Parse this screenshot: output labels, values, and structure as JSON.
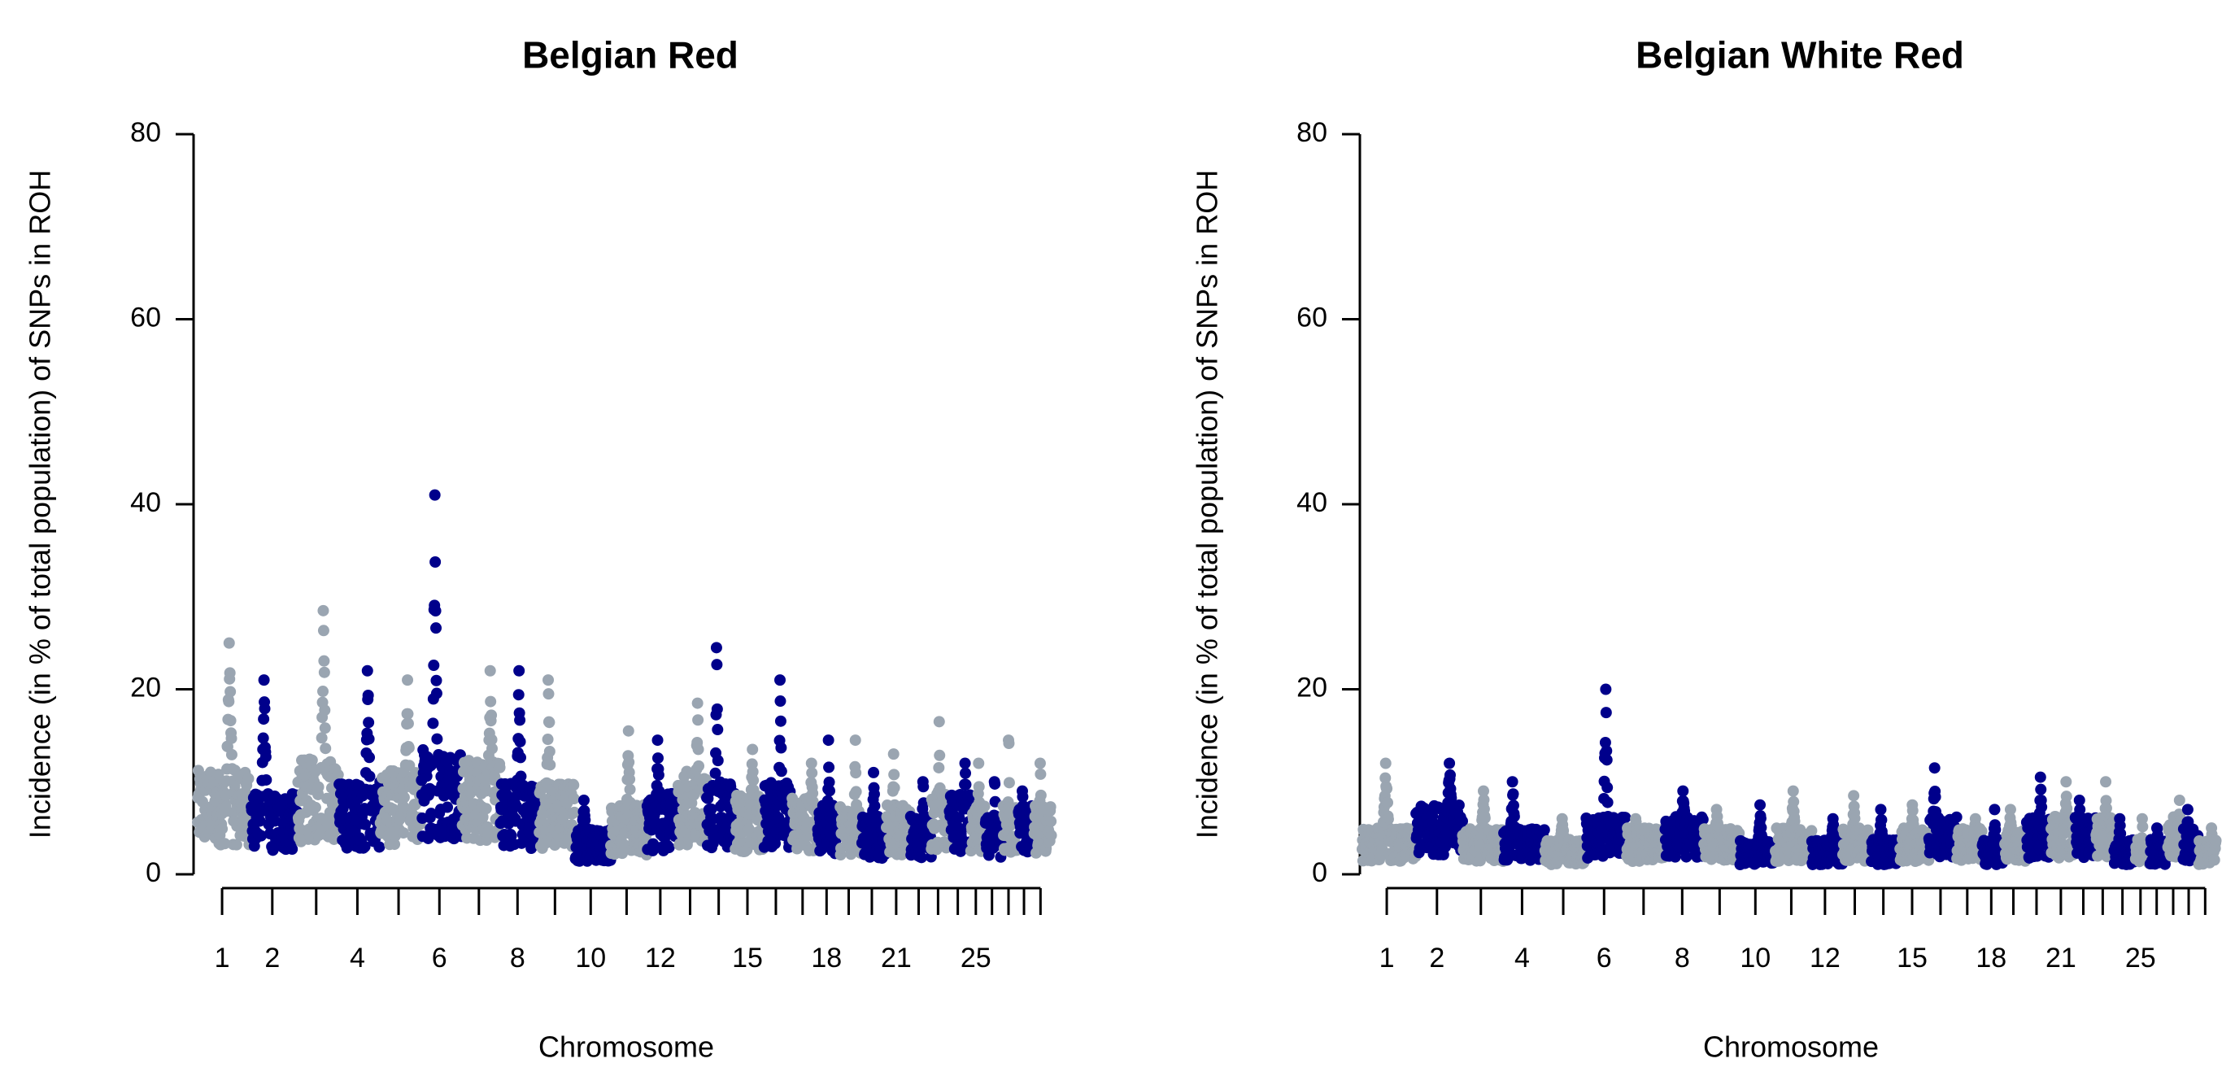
{
  "colors": {
    "dark": "#00008B",
    "light": "#9AA5B1",
    "axis": "#000000",
    "background": "#FFFFFF"
  },
  "chart_data": [
    {
      "type": "scatter",
      "subtype": "manhattan",
      "title": "Belgian Red",
      "xlabel": "Chromosome",
      "ylabel": "Incidence (in % of total population) of SNPs in ROH",
      "ylim": [
        0,
        80
      ],
      "yticks": [
        "0",
        "20",
        "40",
        "60",
        "80"
      ],
      "xtick_labels": [
        "1",
        "2",
        "4",
        "6",
        "8",
        "10",
        "12",
        "15",
        "18",
        "21",
        "25"
      ],
      "labeled_chromosomes": [
        1,
        2,
        4,
        6,
        8,
        10,
        12,
        15,
        18,
        21,
        25
      ],
      "chromosome_colors": [
        "light",
        "dark"
      ],
      "series": [
        {
          "chr": 1,
          "base": 9,
          "max": 25
        },
        {
          "chr": 2,
          "base": 7,
          "max": 21
        },
        {
          "chr": 3,
          "base": 10,
          "max": 28.5
        },
        {
          "chr": 4,
          "base": 8,
          "max": 22
        },
        {
          "chr": 5,
          "base": 9,
          "max": 21
        },
        {
          "chr": 6,
          "base": 11,
          "max": 41
        },
        {
          "chr": 7,
          "base": 10,
          "max": 22
        },
        {
          "chr": 8,
          "base": 8,
          "max": 22
        },
        {
          "chr": 9,
          "base": 8,
          "max": 21
        },
        {
          "chr": 10,
          "base": 4,
          "max": 8
        },
        {
          "chr": 11,
          "base": 6,
          "max": 15.5
        },
        {
          "chr": 12,
          "base": 7,
          "max": 14.5
        },
        {
          "chr": 13,
          "base": 9,
          "max": 18.5
        },
        {
          "chr": 14,
          "base": 8,
          "max": 24.5
        },
        {
          "chr": 15,
          "base": 7,
          "max": 13.5
        },
        {
          "chr": 16,
          "base": 8,
          "max": 21
        },
        {
          "chr": 17,
          "base": 7,
          "max": 12
        },
        {
          "chr": 18,
          "base": 6,
          "max": 14.5
        },
        {
          "chr": 19,
          "base": 6,
          "max": 14.5
        },
        {
          "chr": 20,
          "base": 5,
          "max": 11
        },
        {
          "chr": 21,
          "base": 6,
          "max": 13
        },
        {
          "chr": 22,
          "base": 5,
          "max": 10
        },
        {
          "chr": 23,
          "base": 7,
          "max": 16.5
        },
        {
          "chr": 24,
          "base": 7,
          "max": 12
        },
        {
          "chr": 25,
          "base": 6,
          "max": 12
        },
        {
          "chr": 26,
          "base": 5,
          "max": 10
        },
        {
          "chr": 27,
          "base": 6,
          "max": 14.5
        },
        {
          "chr": 28,
          "base": 6,
          "max": 9
        },
        {
          "chr": 29,
          "base": 6,
          "max": 12
        }
      ]
    },
    {
      "type": "scatter",
      "subtype": "manhattan",
      "title": "Belgian White Red",
      "xlabel": "Chromosome",
      "ylabel": "Incidence (in % of total population) of SNPs in ROH",
      "ylim": [
        0,
        80
      ],
      "yticks": [
        "0",
        "20",
        "40",
        "60",
        "80"
      ],
      "xtick_labels": [
        "1",
        "2",
        "4",
        "6",
        "8",
        "10",
        "12",
        "15",
        "18",
        "21",
        "25"
      ],
      "labeled_chromosomes": [
        1,
        2,
        4,
        6,
        8,
        10,
        12,
        15,
        18,
        21,
        25
      ],
      "chromosome_colors": [
        "light",
        "dark"
      ],
      "series": [
        {
          "chr": 1,
          "base": 4,
          "max": 12
        },
        {
          "chr": 2,
          "base": 6,
          "max": 12
        },
        {
          "chr": 3,
          "base": 4,
          "max": 9
        },
        {
          "chr": 4,
          "base": 4,
          "max": 10
        },
        {
          "chr": 5,
          "base": 3,
          "max": 6
        },
        {
          "chr": 6,
          "base": 5,
          "max": 20
        },
        {
          "chr": 7,
          "base": 4,
          "max": 6
        },
        {
          "chr": 8,
          "base": 5,
          "max": 9
        },
        {
          "chr": 9,
          "base": 4,
          "max": 7
        },
        {
          "chr": 10,
          "base": 3,
          "max": 7.5
        },
        {
          "chr": 11,
          "base": 4,
          "max": 9
        },
        {
          "chr": 12,
          "base": 3,
          "max": 6
        },
        {
          "chr": 13,
          "base": 4,
          "max": 8.5
        },
        {
          "chr": 14,
          "base": 3,
          "max": 7
        },
        {
          "chr": 15,
          "base": 4,
          "max": 7.5
        },
        {
          "chr": 16,
          "base": 5,
          "max": 11.5
        },
        {
          "chr": 17,
          "base": 4,
          "max": 6
        },
        {
          "chr": 18,
          "base": 3,
          "max": 7
        },
        {
          "chr": 19,
          "base": 4,
          "max": 7
        },
        {
          "chr": 20,
          "base": 5,
          "max": 10.5
        },
        {
          "chr": 21,
          "base": 5,
          "max": 10
        },
        {
          "chr": 22,
          "base": 5,
          "max": 8
        },
        {
          "chr": 23,
          "base": 5,
          "max": 10
        },
        {
          "chr": 24,
          "base": 3,
          "max": 6
        },
        {
          "chr": 25,
          "base": 3,
          "max": 6
        },
        {
          "chr": 26,
          "base": 3,
          "max": 5
        },
        {
          "chr": 27,
          "base": 5,
          "max": 8
        },
        {
          "chr": 28,
          "base": 4,
          "max": 7
        },
        {
          "chr": 29,
          "base": 3,
          "max": 5
        }
      ]
    }
  ]
}
